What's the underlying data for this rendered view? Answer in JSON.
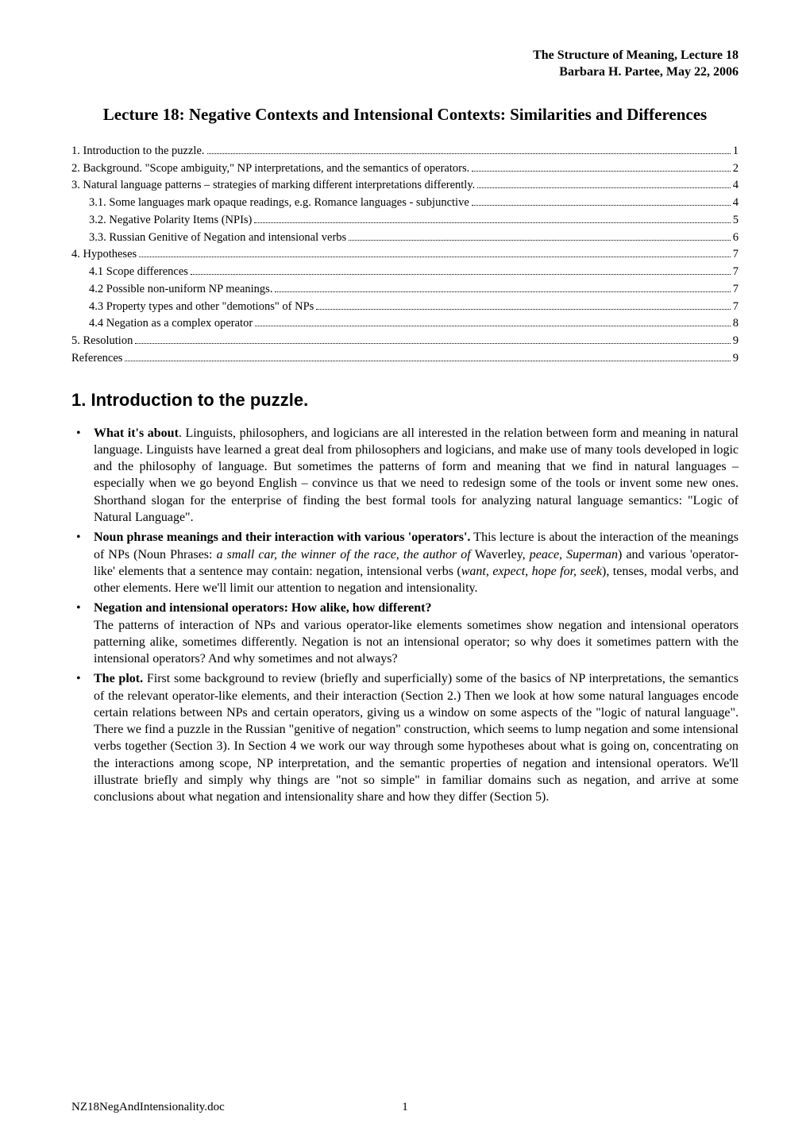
{
  "running_header": {
    "line1": "The Structure of Meaning, Lecture 18",
    "line2": "Barbara H. Partee, May 22, 2006"
  },
  "title": "Lecture 18: Negative Contexts and Intensional Contexts: Similarities and Differences",
  "toc": [
    {
      "text": "1. Introduction to the puzzle.",
      "page": "1",
      "indent": 0
    },
    {
      "text": "2.  Background. \"Scope ambiguity,\" NP interpretations, and the semantics of operators.",
      "page": "2",
      "indent": 0
    },
    {
      "text": "3. Natural language patterns – strategies of marking different interpretations differently.",
      "page": "4",
      "indent": 0
    },
    {
      "text": "3.1. Some languages mark opaque readings, e.g. Romance languages - subjunctive",
      "page": "4",
      "indent": 1
    },
    {
      "text": "3.2. Negative Polarity Items (NPIs)",
      "page": "5",
      "indent": 1
    },
    {
      "text": "3.3. Russian Genitive of Negation and intensional verbs",
      "page": "6",
      "indent": 1
    },
    {
      "text": "4. Hypotheses",
      "page": "7",
      "indent": 0
    },
    {
      "text": "4.1 Scope differences",
      "page": "7",
      "indent": 1
    },
    {
      "text": "4.2  Possible non-uniform NP meanings.",
      "page": "7",
      "indent": 1
    },
    {
      "text": "4.3  Property types and other \"demotions\" of NPs",
      "page": "7",
      "indent": 1
    },
    {
      "text": "4.4  Negation as a complex operator",
      "page": "8",
      "indent": 1
    },
    {
      "text": "5. Resolution",
      "page": "9",
      "indent": 0
    },
    {
      "text": "References",
      "page": "9",
      "indent": 0
    }
  ],
  "section_heading": "1. Introduction to the puzzle.",
  "bullets": {
    "b1": {
      "lead": "What it's about",
      "rest": ". Linguists, philosophers, and logicians are all interested in the relation between form and meaning in natural language. Linguists have learned a great deal from philosophers and logicians, and make use of many tools developed in logic and the philosophy of language. But sometimes the patterns of form and meaning that we find in natural languages – especially when we go beyond English – convince us that we need to redesign some of the tools or invent some new ones. Shorthand slogan for the enterprise of finding the best formal tools for analyzing natural language semantics: \"Logic of Natural Language\"."
    },
    "b2": {
      "lead": "Noun phrase meanings and their interaction with various 'operators'.",
      "mid1": " This lecture is about the interaction of the meanings of NPs (Noun Phrases: ",
      "ital1": "a small car, the winner of the race, the author of ",
      "plain1": "Waverley,  ",
      "ital2": "peace, Superman",
      "mid2": ") and various 'operator-like' elements that a sentence may contain: negation, intensional verbs (",
      "ital3": "want, expect, hope for, seek",
      "mid3": "), tenses, modal verbs, and other elements. Here we'll limit our attention to negation and intensionality."
    },
    "b3": {
      "lead": "Negation and intensional operators: How alike, how different?",
      "rest": "The patterns of interaction of NPs and various operator-like elements sometimes show negation and intensional operators patterning alike, sometimes differently. Negation is not an intensional operator; so why does it sometimes pattern with the intensional operators? And why sometimes and not always?"
    },
    "b4": {
      "lead": "The plot.",
      "rest": " First some background to review (briefly and superficially) some of the basics of NP interpretations, the semantics of the relevant operator-like elements, and their interaction (Section 2.) Then we look at how some natural languages encode certain relations between NPs and certain operators, giving us a window on some aspects of the \"logic of natural language\". There we find a puzzle in the Russian \"genitive of negation\" construction, which seems to lump negation and some intensional verbs together (Section 3). In Section 4 we work our way through some hypotheses about what is going on, concentrating on the interactions among scope, NP interpretation, and the semantic properties of negation and intensional operators. We'll illustrate briefly and simply why things are \"not so simple\" in familiar domains such as negation, and arrive at some conclusions about what negation and intensionality share and how they differ (Section 5)."
    }
  },
  "footer": {
    "left": "NZ18NegAndIntensionality.doc",
    "page": "1"
  }
}
